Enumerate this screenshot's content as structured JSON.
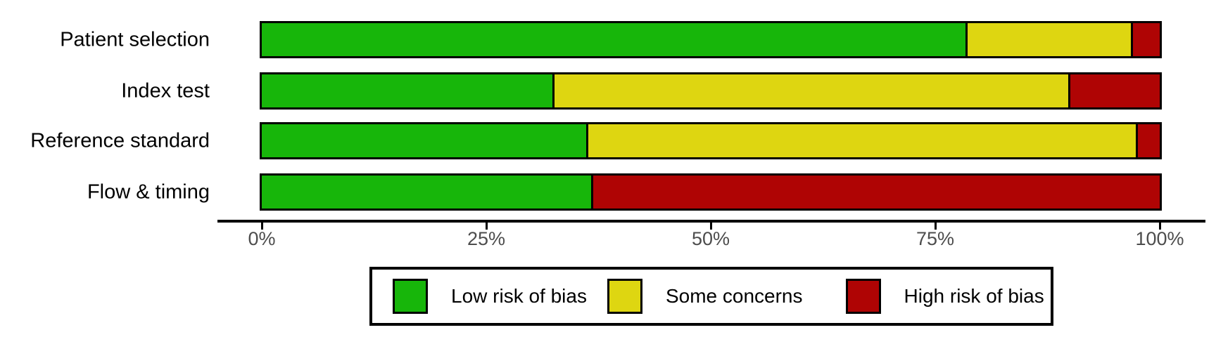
{
  "chart_data": {
    "type": "bar",
    "orientation": "horizontal",
    "stacked": true,
    "title": "",
    "xlabel": "",
    "ylabel": "",
    "xlim": [
      0,
      100
    ],
    "grid": false,
    "legend_position": "bottom",
    "categories": [
      "Patient selection",
      "Index test",
      "Reference standard",
      "Flow & timing"
    ],
    "series": [
      {
        "name": "Low risk of bias",
        "color": "#17B60A",
        "values": [
          78.4,
          32.4,
          36.1,
          36.7
        ]
      },
      {
        "name": "Some concerns",
        "color": "#DED611",
        "values": [
          18.4,
          57.4,
          61.2,
          0.0
        ]
      },
      {
        "name": "High risk of bias",
        "color": "#AF0404",
        "values": [
          3.2,
          10.2,
          2.7,
          63.3
        ]
      }
    ],
    "x_ticks": [
      {
        "value": 0,
        "label": "0%"
      },
      {
        "value": 25,
        "label": "25%"
      },
      {
        "value": 50,
        "label": "50%"
      },
      {
        "value": 75,
        "label": "75%"
      },
      {
        "value": 100,
        "label": "100%"
      }
    ]
  },
  "legend": {
    "items": [
      {
        "label": "Low risk of bias",
        "color": "#17B60A"
      },
      {
        "label": "Some concerns",
        "color": "#DED611"
      },
      {
        "label": "High risk of bias",
        "color": "#AF0404"
      }
    ]
  },
  "style_colors": {
    "bar_border": "#000000",
    "axis_line": "#000000",
    "tick_text": "#4d4d4d",
    "label_text": "#000000"
  }
}
